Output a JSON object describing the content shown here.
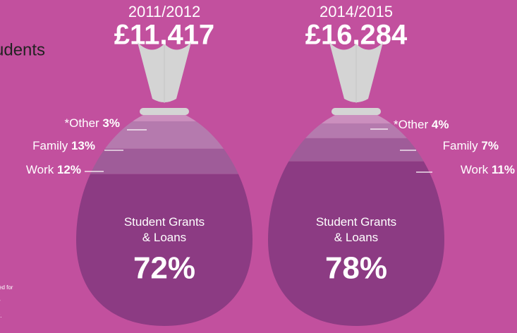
{
  "page_text": {
    "heading_fragment": "udents",
    "footnote_fragments": [
      "ed for",
      "r",
      "t."
    ]
  },
  "chart_data": [
    {
      "type": "bag",
      "title": "2011/2012",
      "subtitle": "£11,417",
      "categories": [
        "*Other",
        "Family",
        "Work",
        "Student Grants & Loans"
      ],
      "values": [
        3,
        13,
        12,
        72
      ],
      "value_labels": [
        "3%",
        "13%",
        "12%",
        "72%"
      ],
      "colors": [
        "#cb8fbe",
        "#b57aae",
        "#9f5c99",
        "#8c3b83"
      ]
    },
    {
      "type": "bag",
      "title": "2014/2015",
      "subtitle": "£16,284",
      "categories": [
        "*Other",
        "Family",
        "Work",
        "Student Grants & Loans"
      ],
      "values": [
        4,
        7,
        11,
        78
      ],
      "value_labels": [
        "4%",
        "7%",
        "11%",
        "78%"
      ],
      "colors": [
        "#cb8fbe",
        "#b57aae",
        "#9f5c99",
        "#8c3b83"
      ]
    }
  ]
}
